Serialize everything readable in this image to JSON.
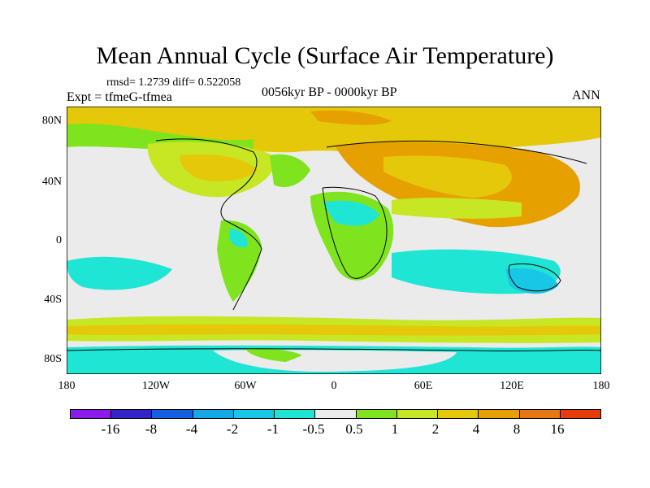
{
  "title": "Mean Annual Cycle (Surface Air Temperature)",
  "stats": "rmsd= 1.2739 diff= 0.522058",
  "experiment": "Expt = tfmeG-tfmea",
  "period": "0056kyr BP - 0000kyr BP",
  "season": "ANN",
  "lat_labels": [
    "80N",
    "40N",
    "0",
    "40S",
    "80S"
  ],
  "lon_labels": [
    "180",
    "120W",
    "60W",
    "0",
    "60E",
    "120E",
    "180"
  ],
  "colorbar": {
    "colors": [
      "#8c1aea",
      "#3224c8",
      "#1560e0",
      "#14a9e6",
      "#18c6e6",
      "#1fe6d4",
      "#ebebeb",
      "#7fe41d",
      "#c7e624",
      "#e6c80a",
      "#e6a000",
      "#e67814",
      "#e63c0a"
    ],
    "labels": [
      "-16",
      "-8",
      "-4",
      "-2",
      "-1",
      "-0.5",
      "0.5",
      "1",
      "2",
      "4",
      "8",
      "16"
    ]
  }
}
